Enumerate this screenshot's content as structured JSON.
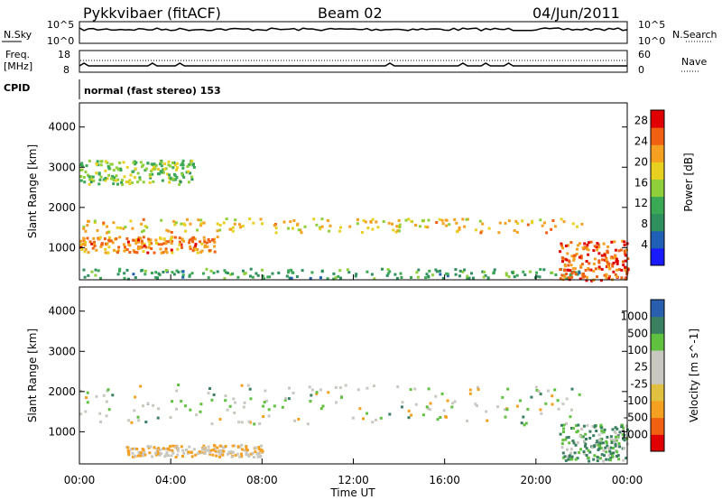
{
  "header": {
    "radar": "Pykkvibaer (fitACF)",
    "beam": "Beam 02",
    "date": "04/Jun/2011"
  },
  "noise_panel": {
    "left_label": "N.Sky",
    "right_label": "N.Search",
    "left_ticks": [
      "10^5",
      "10^0"
    ],
    "right_ticks": [
      "10^5",
      "10^0"
    ]
  },
  "freq_panel": {
    "left_label_1": "Freq.",
    "left_label_2": "[MHz]",
    "right_label": "Nave",
    "left_ticks": [
      "18",
      "8"
    ],
    "right_ticks": [
      "60",
      "0"
    ]
  },
  "cpid": {
    "label": "CPID",
    "value": "normal (fast stereo) 153"
  },
  "x_axis": {
    "label": "Time UT",
    "ticks": [
      "00:00",
      "04:00",
      "08:00",
      "12:00",
      "16:00",
      "20:00",
      "00:00"
    ]
  },
  "colors": {
    "power": [
      "#1a1aff",
      "#1f5fb5",
      "#2f8f5f",
      "#3aa855",
      "#8fcf3a",
      "#e8d020",
      "#f5a020",
      "#f06010",
      "#e00000"
    ],
    "velocity": [
      "#e00000",
      "#f06010",
      "#f5a020",
      "#c8c8c0",
      "#c8c8c0",
      "#60c040",
      "#3a8060",
      "#2a5fb0",
      "#1a3fa0"
    ]
  },
  "chart_data": [
    {
      "type": "heatmap",
      "panel": "power",
      "ylabel": "Slant Range [km]",
      "yticks": [
        "1000",
        "2000",
        "3000",
        "4000"
      ],
      "ylim": [
        200,
        4600
      ],
      "xlim": [
        "00:00",
        "24:00"
      ],
      "colorbar_label": "Power [dB]",
      "colorbar_ticks": [
        "4",
        "8",
        "12",
        "16",
        "20",
        "24",
        "28"
      ],
      "colorbar_range": [
        0,
        30
      ],
      "echo_bands": [
        {
          "t_start": 0,
          "t_end": 22,
          "range_km": [
            1400,
            1750
          ],
          "power_db": 20
        },
        {
          "t_start": 0,
          "t_end": 6,
          "range_km": [
            900,
            1300
          ],
          "power_db": 24
        },
        {
          "t_start": 0,
          "t_end": 5,
          "range_km": [
            2600,
            3200
          ],
          "power_db": 14
        },
        {
          "t_start": 0,
          "t_end": 22,
          "range_km": [
            250,
            500
          ],
          "power_db": 10
        },
        {
          "t_start": 21,
          "t_end": 24,
          "range_km": [
            200,
            1200
          ],
          "power_db": 26
        }
      ]
    },
    {
      "type": "heatmap",
      "panel": "velocity",
      "ylabel": "Slant Range [km]",
      "yticks": [
        "1000",
        "2000",
        "3000",
        "4000"
      ],
      "ylim": [
        200,
        4600
      ],
      "xlim": [
        "00:00",
        "24:00"
      ],
      "colorbar_label": "Velocity [m s^-1]",
      "colorbar_ticks": [
        "1000",
        "500",
        "100",
        "25",
        "-25",
        "-100",
        "-500",
        "-1000"
      ],
      "echo_bands": [
        {
          "t_start": 0,
          "t_end": 22,
          "range_km": [
            1200,
            2200
          ],
          "velocity": 0
        },
        {
          "t_start": 2,
          "t_end": 8,
          "range_km": [
            400,
            700
          ],
          "velocity": -100
        },
        {
          "t_start": 21,
          "t_end": 24,
          "range_km": [
            300,
            1200
          ],
          "velocity": 100
        }
      ]
    }
  ]
}
